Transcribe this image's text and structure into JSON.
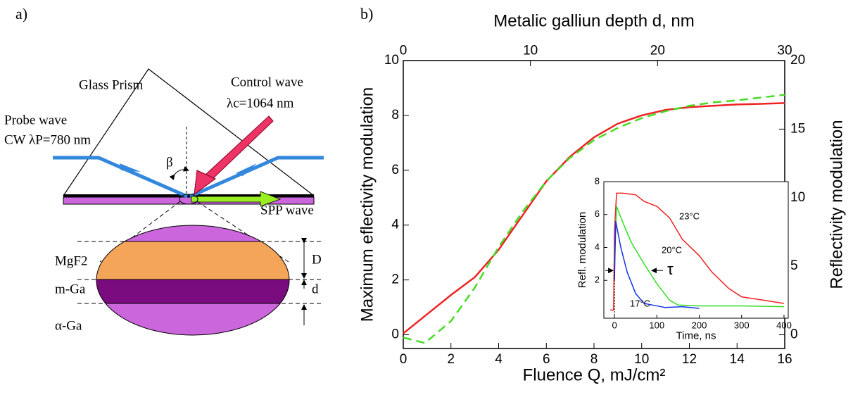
{
  "panels": [
    "a)",
    "b)"
  ],
  "diagram": {
    "prism": "Glass Prism",
    "control_wave": "Control wave",
    "control_lambda": "λc=1064 nm",
    "probe_wave": "Probe wave",
    "probe_lambda": "CW λP=780 nm",
    "angle": "β",
    "spp": "SPP wave",
    "layers": [
      "MgF2",
      "m-Ga",
      "α-Ga"
    ],
    "thickness_D": "D",
    "thickness_d": "d"
  },
  "chart_data": [
    {
      "type": "line",
      "xlabel": "Fluence Q, mJ/cm²",
      "ylabel": "Maximum eflectivity modulation",
      "x2label": "Metalic galliun depth d, nm",
      "y2label": "Reflectivity modulation",
      "xlim": [
        0,
        16
      ],
      "xticks": [
        0,
        2,
        4,
        6,
        8,
        10,
        12,
        14,
        16
      ],
      "ylim": [
        -0.5,
        10
      ],
      "yticks": [
        0,
        2,
        4,
        6,
        8,
        10
      ],
      "x2lim": [
        0,
        30
      ],
      "x2ticks": [
        0,
        10,
        20,
        30
      ],
      "y2lim": [
        -1,
        20
      ],
      "y2ticks": [
        0,
        5,
        10,
        15,
        20
      ],
      "series": [
        {
          "color": "#ee2222",
          "dashed": false,
          "x": [
            0,
            1,
            2,
            3,
            4,
            5,
            6,
            7,
            8,
            9,
            10,
            11,
            12,
            13,
            14,
            15,
            16
          ],
          "values": [
            0.05,
            0.75,
            1.45,
            2.1,
            3.1,
            4.35,
            5.6,
            6.5,
            7.2,
            7.7,
            8.0,
            8.2,
            8.3,
            8.35,
            8.4,
            8.42,
            8.45
          ]
        },
        {
          "color": "#44dd22",
          "dashed": true,
          "axis": "y2",
          "xaxis": "x2",
          "x": [
            0,
            1.7,
            3.75,
            5.6,
            7.5,
            9.4,
            11.25,
            13.1,
            15,
            16.9,
            18.75,
            20.6,
            22.5,
            24.4,
            26.25,
            28.1,
            30
          ],
          "values": [
            -0.2,
            -0.6,
            1.0,
            3.4,
            6.4,
            9.0,
            11.2,
            12.9,
            14.2,
            15.1,
            15.8,
            16.3,
            16.7,
            16.95,
            17.1,
            17.3,
            17.5
          ]
        }
      ]
    },
    {
      "type": "line",
      "xlabel": "Time, ns",
      "ylabel": "Refl. modulation",
      "xlim": [
        -25,
        410
      ],
      "xticks": [
        0,
        100,
        200,
        300,
        400
      ],
      "ylim": [
        -0.3,
        8
      ],
      "yticks": [
        2,
        4,
        6,
        8
      ],
      "annotations": [
        "τ"
      ],
      "series": [
        {
          "name": "23°C",
          "color": "#ee2222",
          "x": [
            -10,
            -2,
            0,
            5,
            20,
            50,
            70,
            100,
            130,
            160,
            200,
            230,
            270,
            300,
            350,
            400
          ],
          "values": [
            0.2,
            0.2,
            5.0,
            7.3,
            7.3,
            7.2,
            6.8,
            6.5,
            5.8,
            4.5,
            3.5,
            2.5,
            1.5,
            1.0,
            0.8,
            0.6
          ]
        },
        {
          "name": "20°C",
          "color": "#33dd22",
          "x": [
            0,
            5,
            20,
            40,
            70,
            100,
            130,
            150,
            200,
            300,
            400
          ],
          "values": [
            3.0,
            6.5,
            5.5,
            4.3,
            3.0,
            1.8,
            0.8,
            0.5,
            0.45,
            0.45,
            0.4
          ]
        },
        {
          "name": "17°C",
          "color": "#1133ee",
          "x": [
            0,
            3,
            15,
            30,
            50,
            70,
            90,
            120,
            160,
            200
          ],
          "values": [
            2.0,
            5.6,
            4.0,
            2.5,
            1.2,
            0.6,
            0.5,
            0.35,
            0.4,
            0.3
          ]
        }
      ]
    }
  ]
}
